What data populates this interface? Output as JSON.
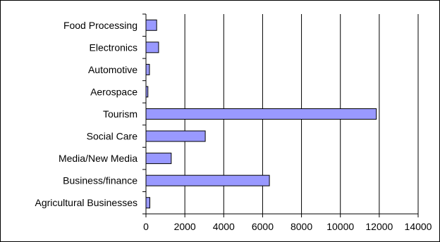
{
  "chart_data": {
    "type": "bar",
    "orientation": "horizontal",
    "categories": [
      "Food Processing",
      "Electronics",
      "Automotive",
      "Aerospace",
      "Tourism",
      "Social Care",
      "Media/New Media",
      "Business/finance",
      "Agricultural Businesses"
    ],
    "values": [
      550,
      650,
      180,
      100,
      11850,
      3050,
      1300,
      6350,
      200
    ],
    "xlim": [
      0,
      14000
    ],
    "xticks": [
      0,
      2000,
      4000,
      6000,
      8000,
      10000,
      12000,
      14000
    ],
    "xtick_labels": [
      "0",
      "2000",
      "4000",
      "6000",
      "8000",
      "10000",
      "12000",
      "14000"
    ],
    "grid": "vertical",
    "bar_color": "#9999ff",
    "bar_edge_color": "#000000"
  }
}
